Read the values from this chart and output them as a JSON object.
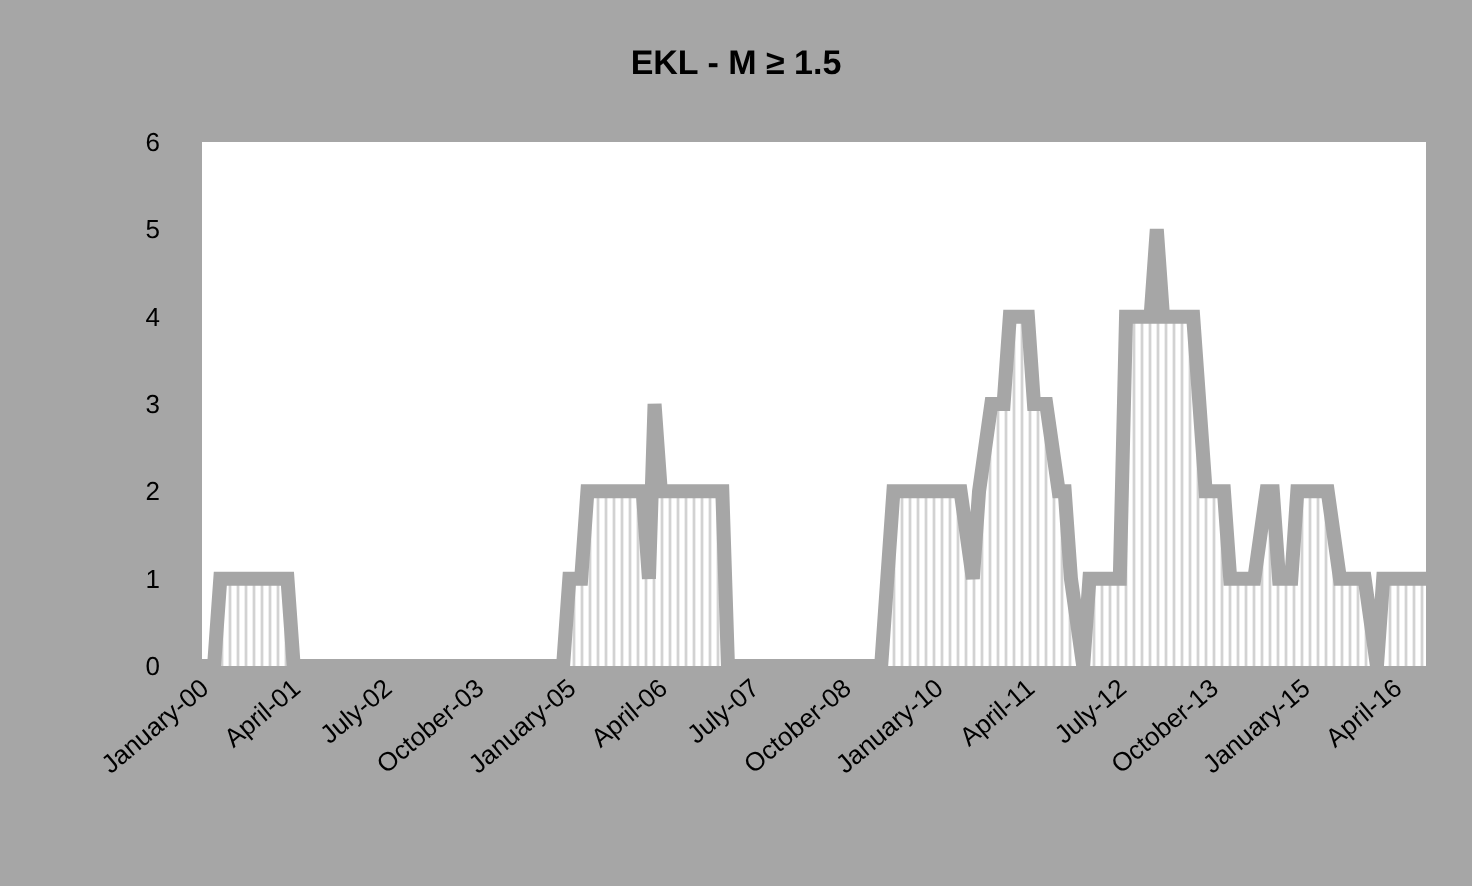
{
  "chart_data": {
    "type": "area",
    "title": "EKL - M ≥ 1.5",
    "x": [
      "2000-01",
      "2000-03",
      "2000-04",
      "2001-03",
      "2001-04",
      "2004-12",
      "2005-01",
      "2005-03",
      "2005-04",
      "2006-01",
      "2006-02",
      "2006-03",
      "2006-04",
      "2007-02",
      "2007-03",
      "2009-04",
      "2009-06",
      "2010-05",
      "2010-07",
      "2010-08",
      "2010-10",
      "2010-12",
      "2011-01",
      "2011-04",
      "2011-05",
      "2011-07",
      "2011-09",
      "2011-10",
      "2011-11",
      "2012-01",
      "2012-02",
      "2012-07",
      "2012-08",
      "2012-12",
      "2013-01",
      "2013-02",
      "2013-07",
      "2013-09",
      "2013-12",
      "2014-01",
      "2014-05",
      "2014-07",
      "2014-08",
      "2014-09",
      "2014-11",
      "2014-12",
      "2015-05",
      "2015-07",
      "2015-11",
      "2016-01",
      "2016-02",
      "2016-09"
    ],
    "series": [
      {
        "color": "#a6a6a6",
        "values": [
          0,
          0,
          1,
          1,
          0,
          0,
          1,
          1,
          2,
          2,
          1,
          3,
          2,
          2,
          0,
          0,
          2,
          2,
          1,
          2,
          3,
          3,
          4,
          4,
          3,
          3,
          2,
          2,
          1,
          0,
          1,
          1,
          4,
          4,
          5,
          4,
          4,
          2,
          2,
          1,
          1,
          2,
          2,
          1,
          1,
          2,
          2,
          1,
          1,
          0,
          1,
          1
        ]
      }
    ],
    "xlim": [
      "2000-01",
      "2016-09"
    ],
    "xticks": [
      {
        "value": "2000-01",
        "label": "January-00"
      },
      {
        "value": "2001-04",
        "label": "April-01"
      },
      {
        "value": "2002-07",
        "label": "July-02"
      },
      {
        "value": "2003-10",
        "label": "October-03"
      },
      {
        "value": "2005-01",
        "label": "January-05"
      },
      {
        "value": "2006-04",
        "label": "April-06"
      },
      {
        "value": "2007-07",
        "label": "July-07"
      },
      {
        "value": "2008-10",
        "label": "October-08"
      },
      {
        "value": "2010-01",
        "label": "January-10"
      },
      {
        "value": "2011-04",
        "label": "April-11"
      },
      {
        "value": "2012-07",
        "label": "July-12"
      },
      {
        "value": "2013-10",
        "label": "October-13"
      },
      {
        "value": "2015-01",
        "label": "January-15"
      },
      {
        "value": "2016-04",
        "label": "April-16"
      }
    ],
    "ylim": [
      0,
      6
    ],
    "yticks": [
      0,
      1,
      2,
      3,
      4,
      5,
      6
    ]
  }
}
